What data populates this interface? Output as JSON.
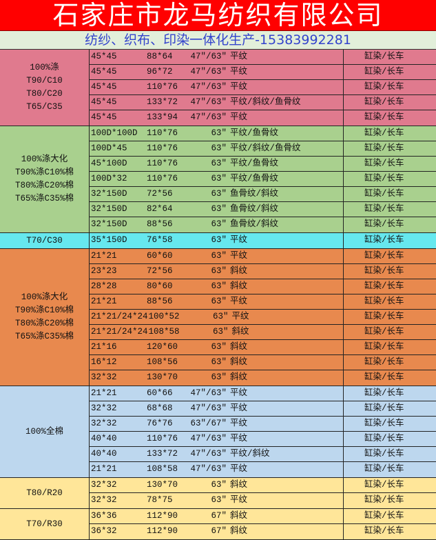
{
  "header": {
    "title": "石家庄市龙马纺织有限公司",
    "subtitle": "纺纱、织布、印染一体化生产-15383992281"
  },
  "colors": {
    "title_bg": "#ff0000",
    "subtitle_bg": "#e2efda",
    "subtitle_text": "#3343cc"
  },
  "groups": [
    {
      "label": "100%涤\nT90/C10\nT80/C20\nT65/C35",
      "color": "#e07a8e",
      "rows": [
        {
          "yarn": "45*45",
          "density": "88*64",
          "width": "47″/63″",
          "weave": "平纹",
          "process": "缸染/长车"
        },
        {
          "yarn": "45*45",
          "density": "96*72",
          "width": "47″/63″",
          "weave": "平纹",
          "process": "缸染/长车"
        },
        {
          "yarn": "45*45",
          "density": "110*76",
          "width": "47″/63″",
          "weave": "平纹",
          "process": "缸染/长车"
        },
        {
          "yarn": "45*45",
          "density": "133*72",
          "width": "47″/63″",
          "weave": "平纹/斜纹/鱼骨纹",
          "process": "缸染/长车"
        },
        {
          "yarn": "45*45",
          "density": "133*94",
          "width": "47″/63″",
          "weave": "平纹",
          "process": "缸染/长车"
        }
      ]
    },
    {
      "label": "100%涤大化\nT90%涤C10%棉\nT80%涤C20%棉\nT65%涤C35%棉",
      "color": "#a9d08e",
      "rows": [
        {
          "yarn": "100D*100D",
          "density": "110*76",
          "width": "63″",
          "weave": "平纹/鱼骨纹",
          "process": "缸染/长车"
        },
        {
          "yarn": "100D*45",
          "density": "110*76",
          "width": "63″",
          "weave": "平纹/斜纹/鱼骨纹",
          "process": "缸染/长车"
        },
        {
          "yarn": "45*100D",
          "density": "110*76",
          "width": "63″",
          "weave": "平纹/鱼骨纹",
          "process": "缸染/长车"
        },
        {
          "yarn": "100D*32",
          "density": "110*76",
          "width": "63″",
          "weave": "平纹/鱼骨纹",
          "process": "缸染/长车"
        },
        {
          "yarn": "32*150D",
          "density": "72*56",
          "width": "63″",
          "weave": "鱼骨纹/斜纹",
          "process": "缸染/长车"
        },
        {
          "yarn": "32*150D",
          "density": "82*64",
          "width": "63″",
          "weave": "鱼骨纹/斜纹",
          "process": "缸染/长车"
        },
        {
          "yarn": "32*150D",
          "density": "88*56",
          "width": "63″",
          "weave": "鱼骨纹/斜纹",
          "process": "缸染/长车"
        }
      ]
    },
    {
      "label": "T70/C30",
      "color": "#66e8ee",
      "rows": [
        {
          "yarn": "35*150D",
          "density": "76*58",
          "width": "63″",
          "weave": "平纹",
          "process": "缸染/长车"
        }
      ]
    },
    {
      "label": "100%涤大化\nT90%涤C10%棉\nT80%涤C20%棉\nT65%涤C35%棉",
      "color": "#e8894e",
      "rows": [
        {
          "yarn": "21*21",
          "density": "60*60",
          "width": "63″",
          "weave": "平纹",
          "process": "缸染/长车"
        },
        {
          "yarn": "23*23",
          "density": "72*56",
          "width": "63″",
          "weave": "斜纹",
          "process": "缸染/长车"
        },
        {
          "yarn": "28*28",
          "density": "80*60",
          "width": "63″",
          "weave": "斜纹",
          "process": "缸染/长车"
        },
        {
          "yarn": "21*21",
          "density": "88*56",
          "width": "63″",
          "weave": "平纹",
          "process": "缸染/长车"
        },
        {
          "yarn": "21*21/24*24",
          "density": "100*52",
          "width": "63″",
          "weave": "平纹",
          "process": "缸染/长车"
        },
        {
          "yarn": "21*21/24*24",
          "density": "108*58",
          "width": "63″",
          "weave": "斜纹",
          "process": "缸染/长车"
        },
        {
          "yarn": "21*16",
          "density": "120*60",
          "width": "63″",
          "weave": "斜纹",
          "process": "缸染/长车"
        },
        {
          "yarn": "16*12",
          "density": "108*56",
          "width": "63″",
          "weave": "斜纹",
          "process": "缸染/长车"
        },
        {
          "yarn": "32*32",
          "density": "130*70",
          "width": "63″",
          "weave": "斜纹",
          "process": "缸染/长车"
        }
      ]
    },
    {
      "label": "100%全棉",
      "color": "#bdd7ee",
      "rows": [
        {
          "yarn": "21*21",
          "density": "60*66",
          "width": "47″/63″",
          "weave": "平纹",
          "process": "缸染/长车"
        },
        {
          "yarn": "32*32",
          "density": "68*68",
          "width": "47″/63″",
          "weave": "平纹",
          "process": "缸染/长车"
        },
        {
          "yarn": "32*32",
          "density": "76*76",
          "width": "63″/67″",
          "weave": "平纹",
          "process": "缸染/长车"
        },
        {
          "yarn": "40*40",
          "density": "110*76",
          "width": "47″/63″",
          "weave": "平纹",
          "process": "缸染/长车"
        },
        {
          "yarn": "40*40",
          "density": "133*72",
          "width": "47″/63″",
          "weave": "平纹/斜纹",
          "process": "缸染/长车"
        },
        {
          "yarn": "21*21",
          "density": "108*58",
          "width": "47″/63″",
          "weave": "平纹",
          "process": "缸染/长车"
        }
      ]
    },
    {
      "label": "T80/R20",
      "color": "#ffe699",
      "rows": [
        {
          "yarn": "32*32",
          "density": "130*70",
          "width": "63″",
          "weave": "斜纹",
          "process": "缸染/长车"
        },
        {
          "yarn": "32*32",
          "density": "78*75",
          "width": "63″",
          "weave": "平纹",
          "process": "缸染/长车"
        }
      ]
    },
    {
      "label": "T70/R30",
      "color": "#ffe699",
      "rows": [
        {
          "yarn": "36*36",
          "density": "112*90",
          "width": "67″",
          "weave": "斜纹",
          "process": "缸染/长车"
        },
        {
          "yarn": "36*32",
          "density": "112*90",
          "width": "67″",
          "weave": "斜纹",
          "process": "缸染/长车"
        }
      ]
    }
  ]
}
